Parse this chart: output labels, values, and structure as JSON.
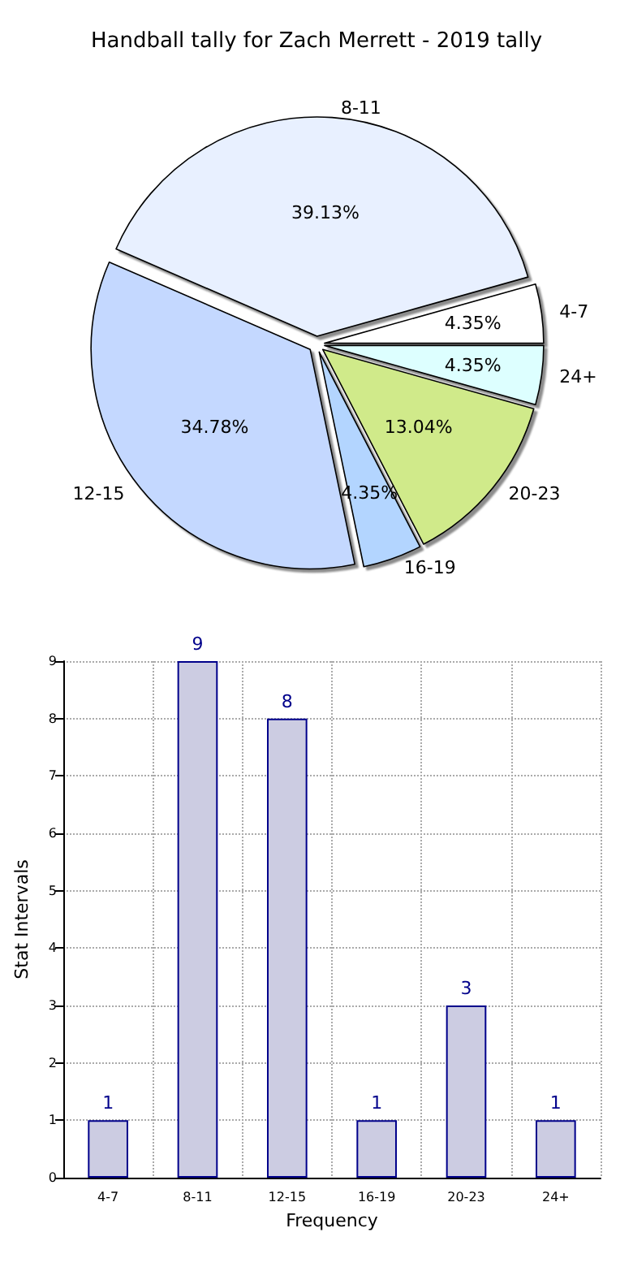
{
  "chart_data": [
    {
      "type": "pie",
      "title": "Handball tally for Zach Merrett - 2019 tally",
      "categories": [
        "4-7",
        "8-11",
        "12-15",
        "16-19",
        "20-23",
        "24+"
      ],
      "values": [
        4.35,
        39.13,
        34.78,
        4.35,
        13.04,
        4.35
      ],
      "value_labels": [
        "4.35%",
        "39.13%",
        "34.78%",
        "4.35%",
        "13.04%",
        "4.35%"
      ],
      "colors": [
        "#ffffff",
        "#e8f0ff",
        "#c4d8ff",
        "#b3d5ff",
        "#d0ea8a",
        "#ddffff"
      ]
    },
    {
      "type": "bar",
      "xlabel": "Frequency",
      "ylabel": "Stat Intervals",
      "categories": [
        "4-7",
        "8-11",
        "12-15",
        "16-19",
        "20-23",
        "24+"
      ],
      "values": [
        1,
        9,
        8,
        1,
        3,
        1
      ],
      "color": "#ccccE2",
      "ylim": [
        0,
        9
      ],
      "yticks": [
        0,
        1,
        2,
        3,
        4,
        5,
        6,
        7,
        8,
        9
      ],
      "grid": true,
      "data_labels": true
    }
  ]
}
